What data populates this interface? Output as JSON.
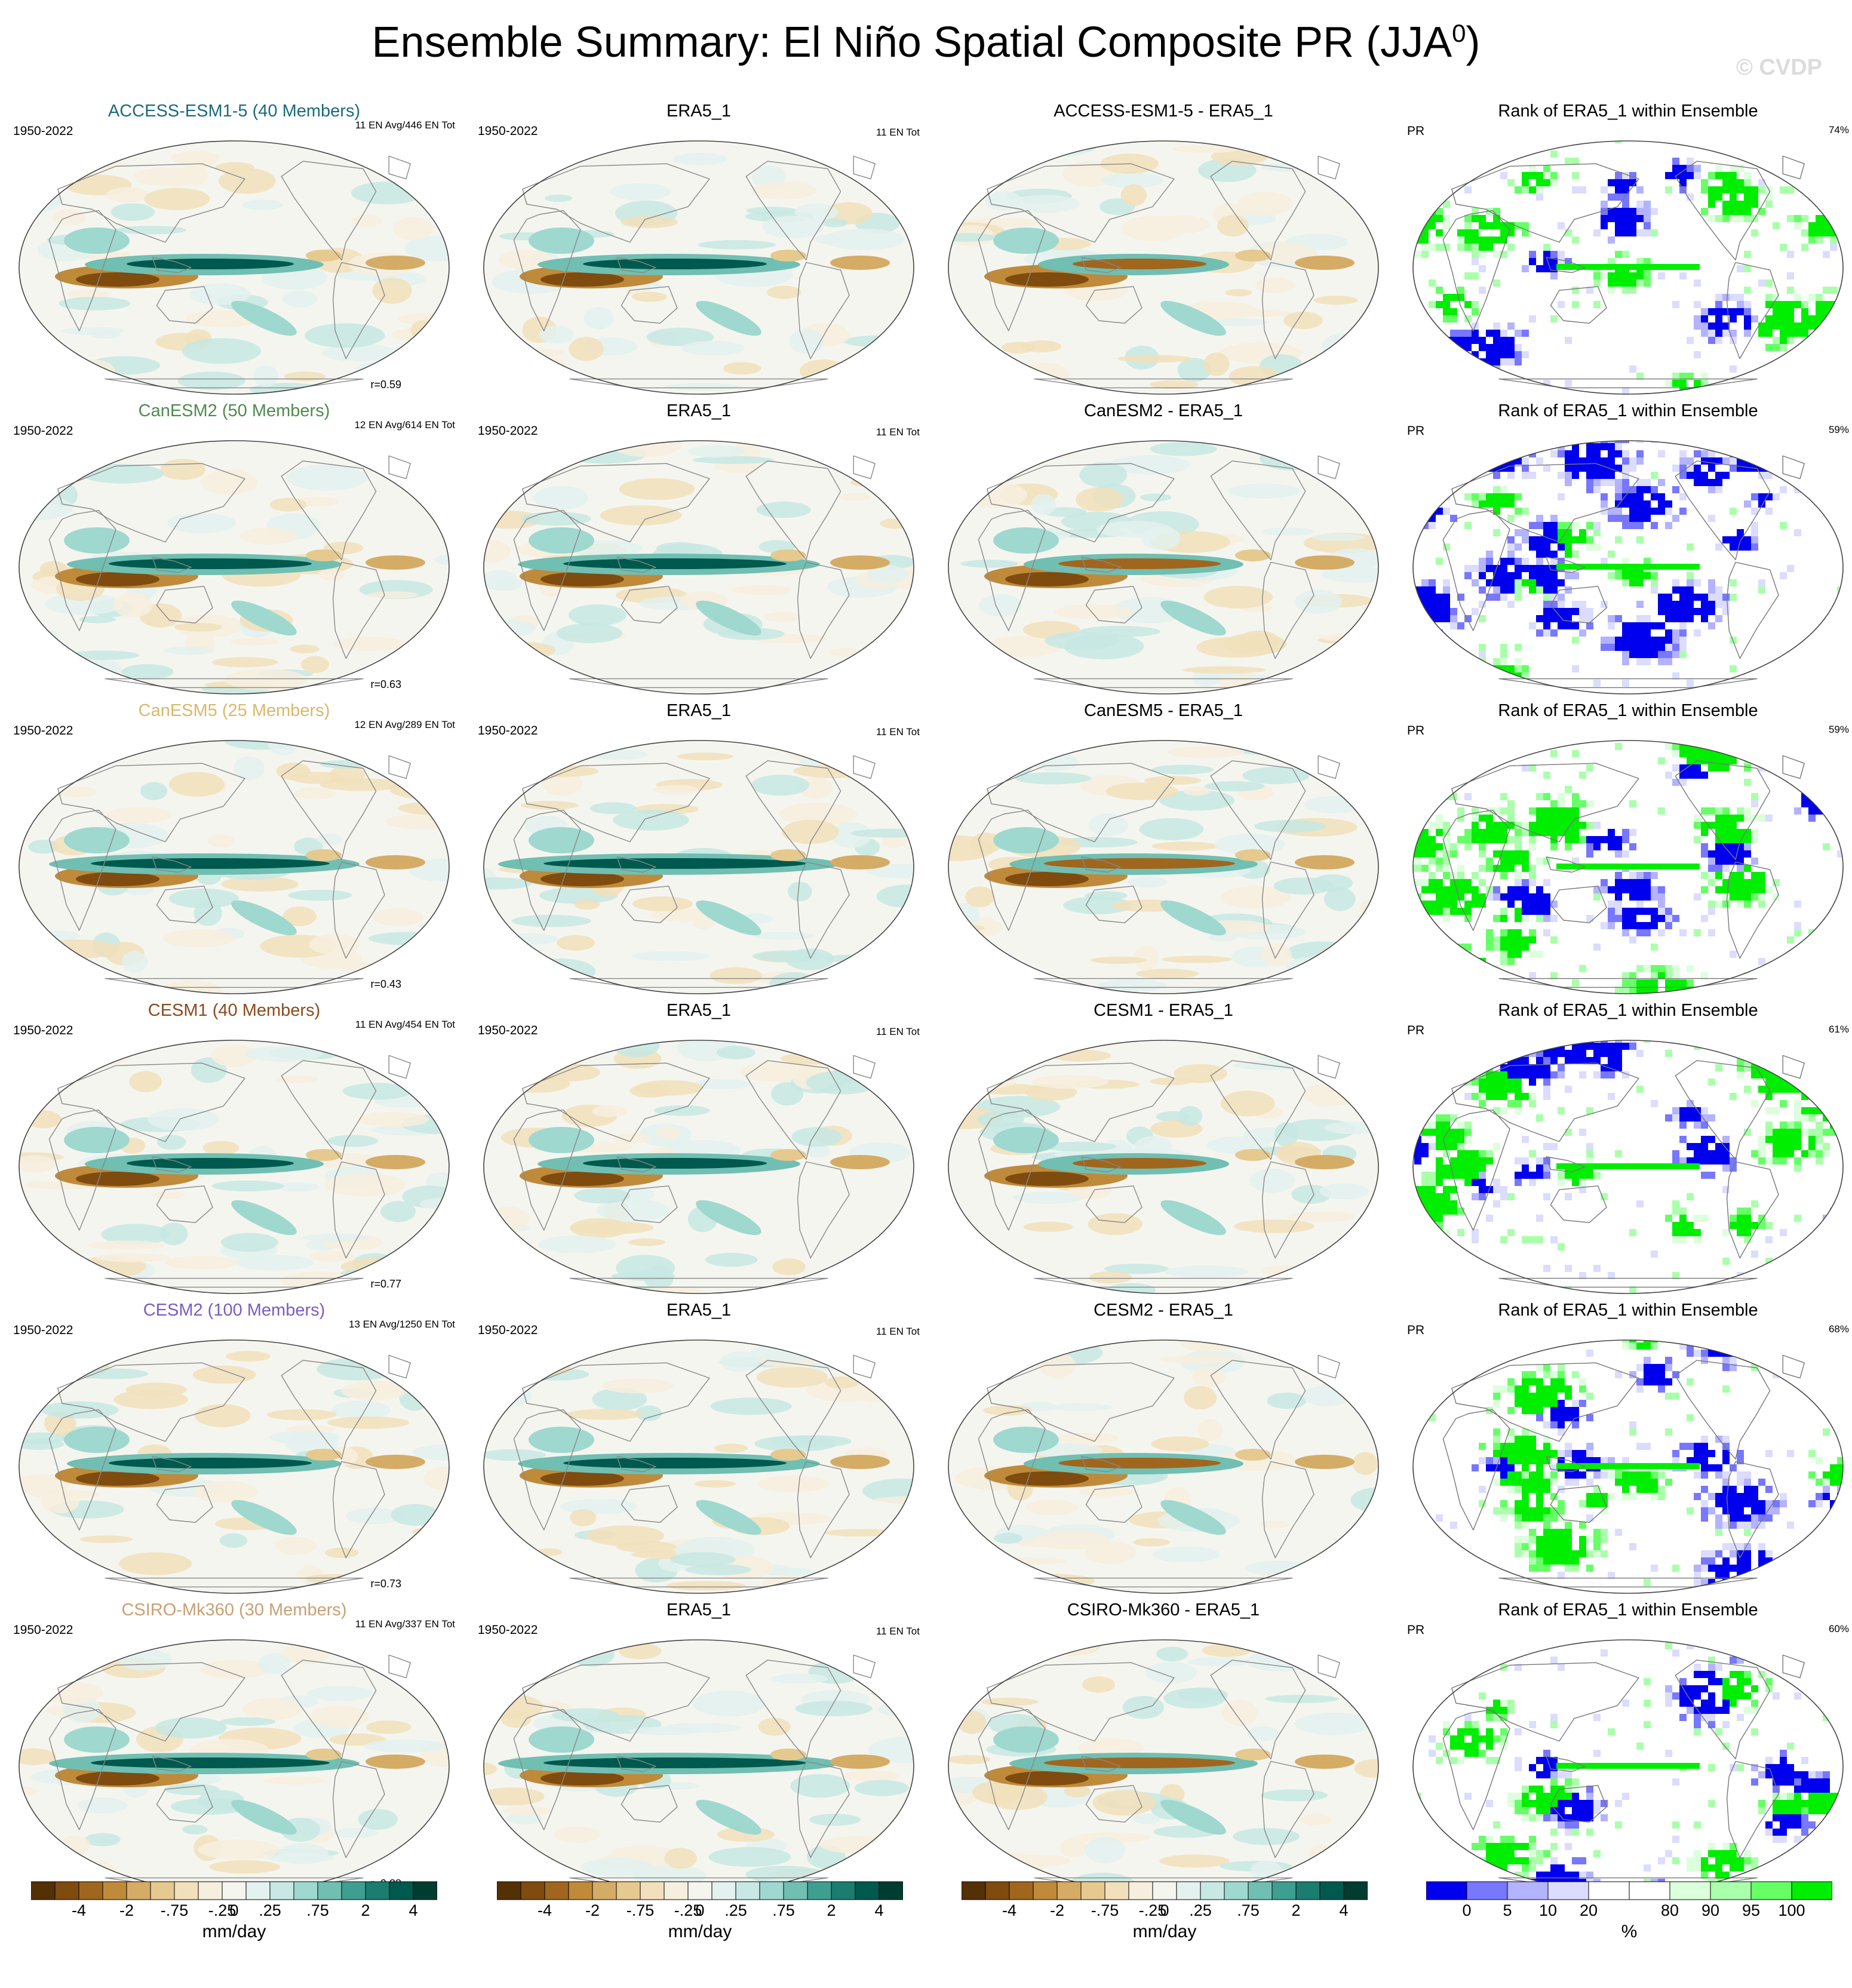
{
  "title": "Ensemble Summary: El Niño Spatial Composite PR (JJA",
  "title_sup": "0",
  "title_close": ")",
  "watermark": "© CVDP",
  "rows": [
    {
      "model": {
        "title": "ACCESS-ESM1-5 (40 Members)",
        "title_color": "#1a6b7d",
        "period": "1950-2022",
        "count": "11 EN Avg/446 EN Tot",
        "corr": "r=0.59"
      },
      "obs": {
        "title": "ERA5_1",
        "period": "1950-2022",
        "count": "11 EN Tot"
      },
      "diff": {
        "title": "ACCESS-ESM1-5 - ERA5_1"
      },
      "rank": {
        "title": "Rank of ERA5_1 within Ensemble",
        "var": "PR",
        "pct": "74%"
      }
    },
    {
      "model": {
        "title": "CanESM2 (50 Members)",
        "title_color": "#4f8a4f",
        "period": "1950-2022",
        "count": "12 EN Avg/614 EN Tot",
        "corr": "r=0.63"
      },
      "obs": {
        "title": "ERA5_1",
        "period": "1950-2022",
        "count": "11 EN Tot"
      },
      "diff": {
        "title": "CanESM2 - ERA5_1"
      },
      "rank": {
        "title": "Rank of ERA5_1 within Ensemble",
        "var": "PR",
        "pct": "59%"
      }
    },
    {
      "model": {
        "title": "CanESM5 (25 Members)",
        "title_color": "#d9b86a",
        "period": "1950-2022",
        "count": "12 EN Avg/289 EN Tot",
        "corr": "r=0.43"
      },
      "obs": {
        "title": "ERA5_1",
        "period": "1950-2022",
        "count": "11 EN Tot"
      },
      "diff": {
        "title": "CanESM5 - ERA5_1"
      },
      "rank": {
        "title": "Rank of ERA5_1 within Ensemble",
        "var": "PR",
        "pct": "59%"
      }
    },
    {
      "model": {
        "title": "CESM1 (40 Members)",
        "title_color": "#8a4a1e",
        "period": "1950-2022",
        "count": "11 EN Avg/454 EN Tot",
        "corr": "r=0.77"
      },
      "obs": {
        "title": "ERA5_1",
        "period": "1950-2022",
        "count": "11 EN Tot"
      },
      "diff": {
        "title": "CESM1 - ERA5_1"
      },
      "rank": {
        "title": "Rank of ERA5_1 within Ensemble",
        "var": "PR",
        "pct": "61%"
      }
    },
    {
      "model": {
        "title": "CESM2 (100 Members)",
        "title_color": "#7b5cc4",
        "period": "1950-2022",
        "count": "13 EN Avg/1250 EN Tot",
        "corr": "r=0.73"
      },
      "obs": {
        "title": "ERA5_1",
        "period": "1950-2022",
        "count": "11 EN Tot"
      },
      "diff": {
        "title": "CESM2 - ERA5_1"
      },
      "rank": {
        "title": "Rank of ERA5_1 within Ensemble",
        "var": "PR",
        "pct": "68%"
      }
    },
    {
      "model": {
        "title": "CSIRO-Mk360 (30 Members)",
        "title_color": "#c9a074",
        "period": "1950-2022",
        "count": "11 EN Avg/337 EN Tot",
        "corr": "r=0.28"
      },
      "obs": {
        "title": "ERA5_1",
        "period": "1950-2022",
        "count": "11 EN Tot"
      },
      "diff": {
        "title": "CSIRO-Mk360 - ERA5_1"
      },
      "rank": {
        "title": "Rank of ERA5_1 within Ensemble",
        "var": "PR",
        "pct": "60%"
      }
    }
  ],
  "colorbars": {
    "pr": {
      "colors": [
        "#543005",
        "#7f4b0f",
        "#a0661e",
        "#bf8a3a",
        "#d5ac66",
        "#e6c98f",
        "#f1e0bb",
        "#f7efde",
        "#f5f5f0",
        "#e3f1ef",
        "#c7e8e3",
        "#9fd8cf",
        "#70bfb2",
        "#3e9e90",
        "#1a7d70",
        "#00594e",
        "#003c30"
      ],
      "ticks": [
        "-4",
        "-2",
        "-.75",
        "-.25",
        "0",
        ".25",
        ".75",
        "2",
        "4"
      ],
      "units": "mm/day"
    },
    "rank": {
      "colors": [
        "#0000ee",
        "#7777ff",
        "#b3b3ff",
        "#dcdcff",
        "#ffffff",
        "#ffffff",
        "#dcffdc",
        "#aaffaa",
        "#66ff66",
        "#00ee00"
      ],
      "ticks": [
        "0",
        "5",
        "10",
        "20",
        "80",
        "90",
        "95",
        "100"
      ],
      "units": "%"
    }
  }
}
